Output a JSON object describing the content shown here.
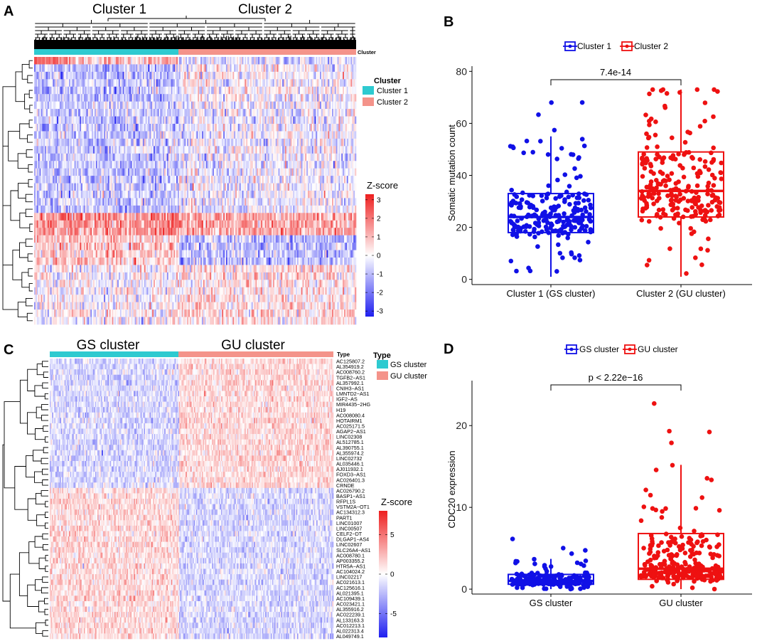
{
  "panels": {
    "A": "A",
    "B": "B",
    "C": "C",
    "D": "D"
  },
  "colors": {
    "cluster1": "#2ecad0",
    "cluster2": "#f4938a",
    "blue": "#1010e6",
    "red": "#ee1111",
    "heat_low": "#1f1ff0",
    "heat_mid": "#ffffff",
    "heat_high": "#ee1f1f"
  },
  "chart_data": [
    {
      "id": "A",
      "type": "heatmap",
      "column_groups": [
        "Cluster 1",
        "Cluster 2"
      ],
      "annotation_track_label": "Cluster",
      "legend_title": "Cluster",
      "legend_items": [
        "Cluster 1",
        "Cluster 2"
      ],
      "colorbar_title": "Z-score",
      "colorbar_ticks": [
        3,
        2,
        1,
        0,
        -1,
        -2,
        -3
      ],
      "colorbar_range": [
        -3.3,
        3.3
      ],
      "rows": 36,
      "columns": 240,
      "dendrogram": "hierarchical"
    },
    {
      "id": "B",
      "type": "box",
      "legend": [
        "Cluster 1",
        "Cluster 2"
      ],
      "categories": [
        "Cluster 1 (GS cluster)",
        "Cluster 2 (GU cluster)"
      ],
      "ylabel": "Somatic mutation count",
      "ylim": [
        -2,
        82
      ],
      "yticks": [
        0,
        20,
        40,
        60,
        80
      ],
      "pvalue": "7.4e-14",
      "boxes": [
        {
          "name": "Cluster 1 (GS cluster)",
          "min": 1,
          "q1": 18,
          "median": 24,
          "q3": 33,
          "max": 55,
          "outliers_max": 69,
          "n_points": 230
        },
        {
          "name": "Cluster 2 (GU cluster)",
          "min": 1,
          "q1": 24,
          "median": 34,
          "q3": 49,
          "max": 73,
          "outliers_max": 73,
          "n_points": 240
        }
      ]
    },
    {
      "id": "C",
      "type": "heatmap",
      "column_groups": [
        "GS cluster",
        "GU cluster"
      ],
      "annotation_track_label": "Type",
      "legend_title": "Type",
      "legend_items": [
        "GS cluster",
        "GU cluster"
      ],
      "colorbar_title": "Z-score",
      "colorbar_ticks": [
        5,
        0,
        -5
      ],
      "colorbar_range": [
        -8,
        8
      ],
      "rows": [
        "AC125807.2",
        "AL354919.2",
        "AC008760.2",
        "TGFB2−AS1",
        "AL357992.1",
        "CNIH3−AS1",
        "LMNTD2−AS1",
        "IGF2−AS",
        "MIR4435−2HG",
        "H19",
        "AC008080.4",
        "HOTAIRM1",
        "AC025171.5",
        "AGAP2−AS1",
        "LINC02308",
        "AL512785.1",
        "AL390755.1",
        "AL355974.2",
        "LINC02732",
        "AL035446.1",
        "AJ011932.1",
        "FOXD3−AS1",
        "AC026401.3",
        "CRNDE",
        "AC026790.2",
        "BASP1−AS1",
        "RFPL1S",
        "VSTM2A−OT1",
        "AC134312.3",
        "PART1",
        "LINC01007",
        "LINC00507",
        "CELF2−DT",
        "DLGAP1−AS4",
        "LINC02607",
        "SLC26A4−AS1",
        "AC008780.1",
        "AP003355.2",
        "HTR5A−AS1",
        "AC104024.2",
        "LINC02217",
        "AC021613.1",
        "AC125616.1",
        "AL021395.1",
        "AC109439.1",
        "AC023421.1",
        "AL355916.2",
        "AC022239.1",
        "AL133163.3",
        "AC012213.1",
        "AL022313.4",
        "AL049749.1"
      ],
      "columns": 250
    },
    {
      "id": "D",
      "type": "box",
      "legend": [
        "GS cluster",
        "GU cluster"
      ],
      "categories": [
        "GS cluster",
        "GU cluster"
      ],
      "ylabel": "CDC20 expression",
      "ylim": [
        -0.6,
        25.5
      ],
      "yticks": [
        0,
        10,
        20
      ],
      "pvalue": "p < 2.22e−16",
      "boxes": [
        {
          "name": "GS cluster",
          "min": 0,
          "q1": 0.6,
          "median": 1.0,
          "q3": 1.8,
          "max": 3.7,
          "outliers_max": 6.5,
          "n_points": 220
        },
        {
          "name": "GU cluster",
          "min": 0,
          "q1": 1.2,
          "median": 2.5,
          "q3": 6.8,
          "max": 15.2,
          "outliers_max": 24.2,
          "n_points": 260
        }
      ]
    }
  ]
}
